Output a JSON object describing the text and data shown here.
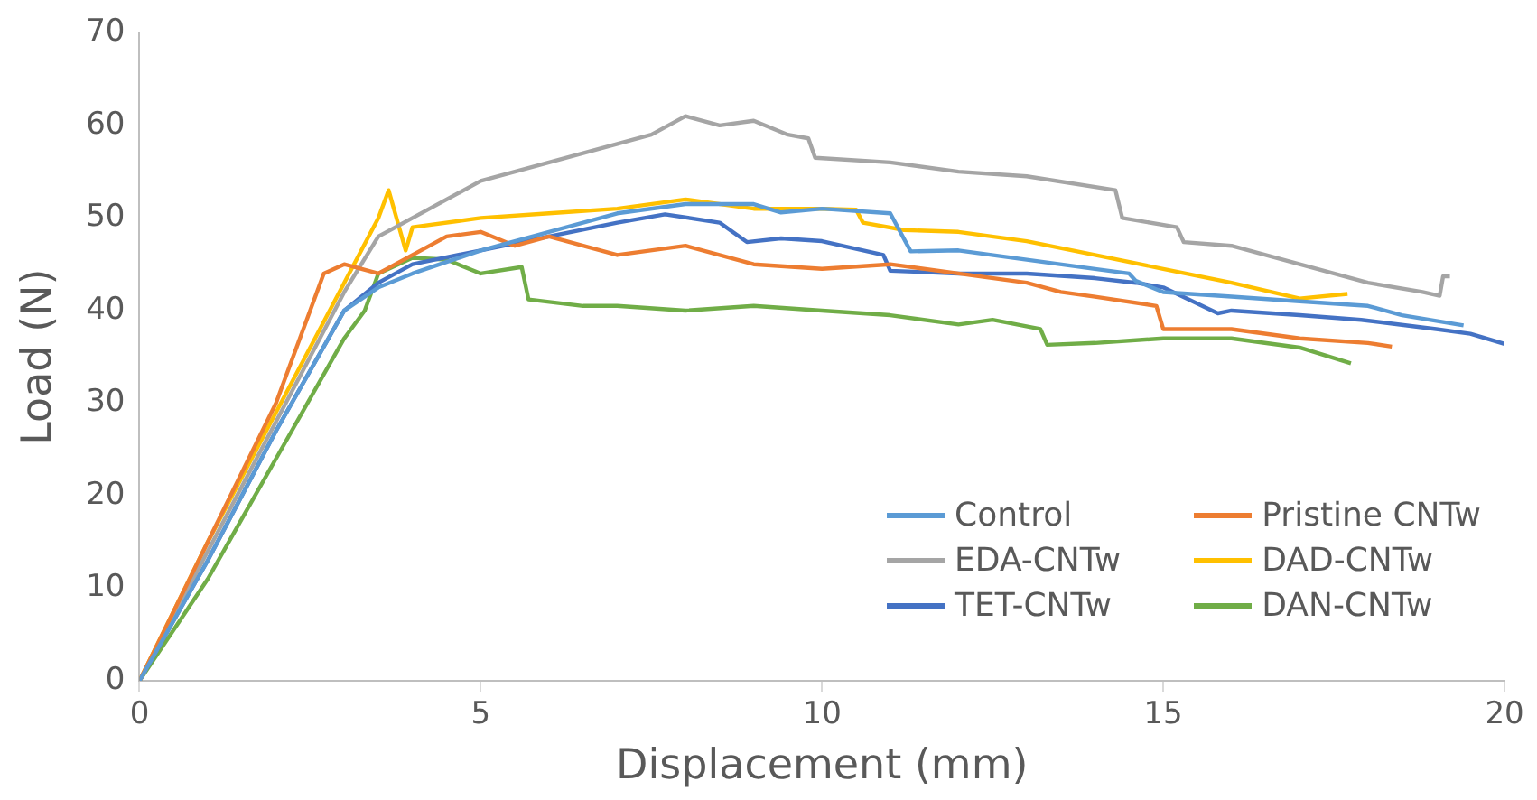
{
  "chart_data": {
    "type": "line",
    "xlabel": "Displacement (mm)",
    "ylabel": "Load (N)",
    "xlim": [
      0,
      20
    ],
    "xticks": [
      0,
      5,
      10,
      15,
      20
    ],
    "ylim": [
      0,
      70
    ],
    "yticks": [
      0,
      10,
      20,
      30,
      40,
      50,
      60,
      70
    ],
    "grid": false,
    "legend": "bottom right",
    "marker": "none",
    "line_style": "solid",
    "series": [
      {
        "name": "Control",
        "color": "#5b9bd5",
        "x": [
          0,
          1,
          2,
          3,
          3.5,
          4,
          5,
          6,
          7,
          8,
          9,
          9.4,
          10,
          11,
          11.3,
          12,
          13,
          14,
          14.5,
          14.6,
          15,
          16,
          17,
          18,
          18.5,
          19.4
        ],
        "values": [
          0,
          13,
          27,
          40,
          42.5,
          44,
          46.5,
          48.5,
          50.5,
          51.5,
          51.5,
          50.6,
          51,
          50.5,
          46.4,
          46.5,
          45.5,
          44.5,
          44,
          43.2,
          42,
          41.5,
          41,
          40.5,
          39.5,
          38.4
        ]
      },
      {
        "name": "Pristine CNTw",
        "color": "#ed7d31",
        "x": [
          0,
          1,
          2,
          2.7,
          3,
          3.5,
          4,
          4.5,
          5,
          5.5,
          6,
          7,
          8,
          9,
          10,
          11,
          12,
          13,
          13.5,
          14,
          14.9,
          15,
          16,
          17,
          18,
          18.35
        ],
        "values": [
          0,
          15,
          30,
          44,
          45,
          44,
          46,
          48,
          48.5,
          47,
          48,
          46,
          47,
          45,
          44.5,
          45,
          44,
          43,
          42,
          41.5,
          40.5,
          38,
          38,
          37,
          36.5,
          36.1
        ]
      },
      {
        "name": "EDA-CNTw",
        "color": "#a5a5a5",
        "x": [
          0,
          1,
          2,
          3,
          3.5,
          4,
          5,
          6,
          7,
          7.5,
          8,
          8.5,
          9,
          9.5,
          9.8,
          9.9,
          11,
          12,
          13,
          14.3,
          14.4,
          15.2,
          15.3,
          16,
          17,
          18,
          18.8,
          19.05,
          19.1,
          19.2
        ],
        "values": [
          0,
          14,
          28,
          42,
          48,
          50,
          54,
          56,
          58,
          59,
          61,
          60,
          60.5,
          59,
          58.6,
          56.5,
          56,
          55,
          54.5,
          53,
          50,
          49,
          47.4,
          47,
          45,
          43,
          42,
          41.6,
          43.7,
          43.7
        ]
      },
      {
        "name": "DAD-CNTw",
        "color": "#ffc000",
        "x": [
          0,
          1,
          2,
          3,
          3.5,
          3.65,
          3.9,
          4,
          5,
          6,
          7,
          8,
          9,
          10,
          10.5,
          10.6,
          11.2,
          12,
          13,
          14,
          15,
          16,
          17,
          17.7
        ],
        "values": [
          0,
          15,
          29,
          43,
          50,
          53,
          46.5,
          49,
          50,
          50.5,
          51,
          52,
          51,
          51,
          50.9,
          49.5,
          48.7,
          48.5,
          47.5,
          46,
          44.5,
          43,
          41.3,
          41.8
        ]
      },
      {
        "name": "TET-CNTw",
        "color": "#4472c4",
        "x": [
          0,
          1,
          2,
          3,
          3.5,
          4,
          5,
          6,
          7,
          7.7,
          8.5,
          8.9,
          9.4,
          10,
          10.9,
          11,
          12,
          13,
          14,
          14.6,
          15,
          15.8,
          16,
          17,
          17.9,
          19,
          19.5,
          20
        ],
        "values": [
          0,
          13,
          27,
          40,
          43,
          45,
          46.5,
          48,
          49.5,
          50.4,
          49.5,
          47.4,
          47.8,
          47.5,
          46,
          44.3,
          44,
          44,
          43.5,
          43,
          42.5,
          39.7,
          40,
          39.5,
          39,
          38,
          37.5,
          36.4
        ]
      },
      {
        "name": "DAN-CNTw",
        "color": "#70ad47",
        "x": [
          0,
          1,
          2,
          3,
          3.3,
          3.5,
          4,
          4.5,
          5,
          5.6,
          5.7,
          6.5,
          7,
          8,
          9,
          10,
          11,
          12,
          12.5,
          13.2,
          13.3,
          14,
          15,
          16,
          17,
          17.75
        ],
        "values": [
          0,
          11,
          24,
          37,
          40,
          44,
          45.7,
          45.5,
          44,
          44.7,
          41.2,
          40.5,
          40.5,
          40,
          40.5,
          40,
          39.5,
          38.5,
          39,
          38,
          36.3,
          36.5,
          37,
          37,
          36,
          34.3
        ]
      }
    ]
  }
}
